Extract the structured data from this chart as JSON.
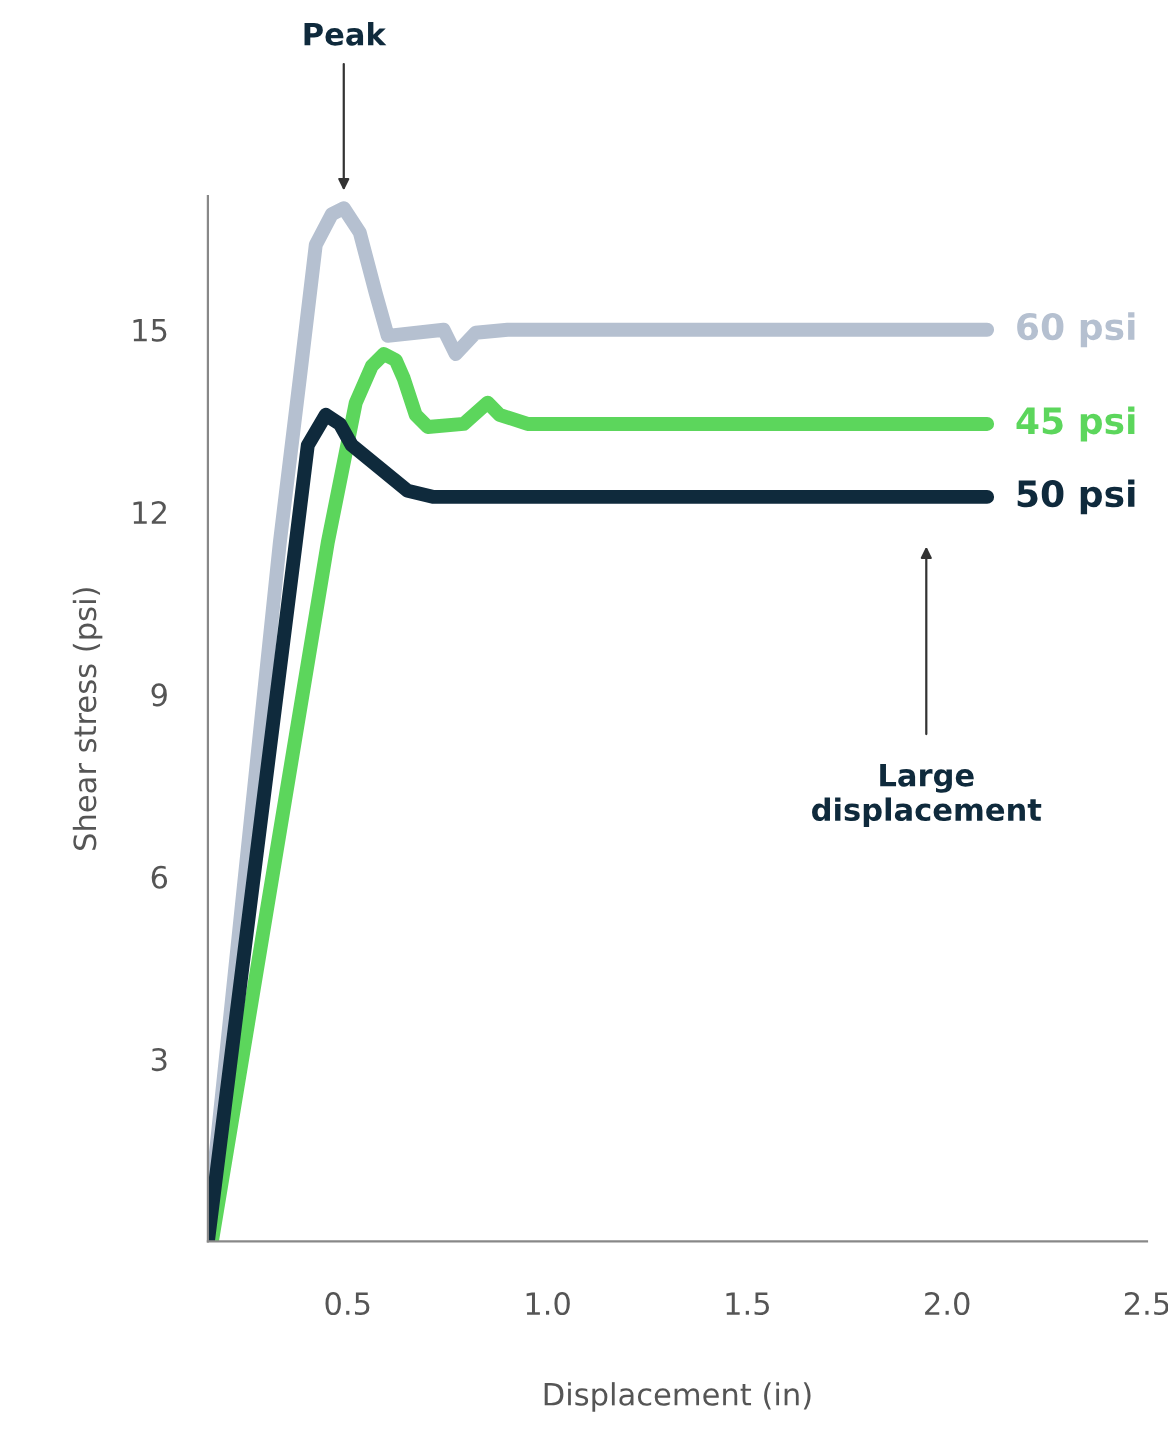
{
  "chart_data": {
    "type": "line",
    "xlabel": "Displacement (in)",
    "ylabel": "Shear stress (psi)",
    "xlim": [
      0.15,
      2.5
    ],
    "ylim": [
      0,
      17.2
    ],
    "xticks": [
      {
        "value": 0.5,
        "label": "0.5"
      },
      {
        "value": 1.0,
        "label": "1.0"
      },
      {
        "value": 1.5,
        "label": "1.5"
      },
      {
        "value": 2.0,
        "label": "2.0"
      },
      {
        "value": 2.5,
        "label": "2.5"
      }
    ],
    "yticks": [
      3,
      6,
      9,
      12,
      15
    ],
    "grid": false,
    "marker": "none",
    "line_style": "solid",
    "series": [
      {
        "name": "60 psi",
        "color": "#b5c0d0",
        "x": [
          0.15,
          0.33,
          0.38,
          0.42,
          0.46,
          0.49,
          0.53,
          0.57,
          0.6,
          0.74,
          0.77,
          0.82,
          0.9,
          1.2,
          2.1
        ],
        "values": [
          0.2,
          11.5,
          14.2,
          16.4,
          16.9,
          17.0,
          16.6,
          15.6,
          14.9,
          15.0,
          14.6,
          14.95,
          15.0,
          15.0,
          15.0
        ]
      },
      {
        "name": "45 psi",
        "color": "#5cd65c",
        "x": [
          0.16,
          0.45,
          0.52,
          0.56,
          0.59,
          0.62,
          0.64,
          0.67,
          0.7,
          0.79,
          0.85,
          0.88,
          0.95,
          2.1
        ],
        "values": [
          0.0,
          11.5,
          13.8,
          14.4,
          14.6,
          14.5,
          14.2,
          13.6,
          13.4,
          13.45,
          13.8,
          13.6,
          13.45,
          13.45
        ]
      },
      {
        "name": "50 psi",
        "color": "#0f2a3c",
        "x": [
          0.15,
          0.37,
          0.4,
          0.445,
          0.48,
          0.51,
          0.585,
          0.65,
          0.715,
          0.9,
          2.1
        ],
        "values": [
          0.0,
          11.5,
          13.1,
          13.6,
          13.45,
          13.1,
          12.7,
          12.35,
          12.25,
          12.25,
          12.25
        ]
      }
    ],
    "annotations": [
      "Peak",
      "Large\ndisplacement"
    ]
  }
}
